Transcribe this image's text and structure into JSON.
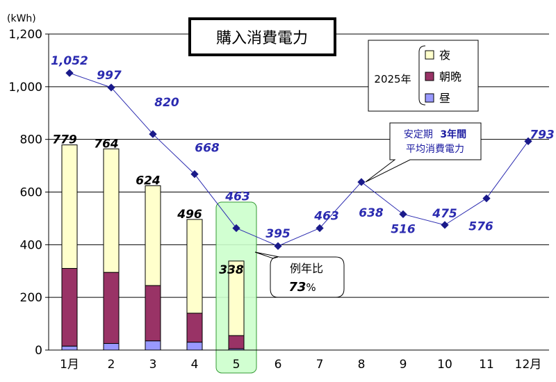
{
  "chart_data": {
    "type": "bar",
    "title": "購入消費電力",
    "unit": "(kWh)",
    "ylim": [
      0,
      1200
    ],
    "yticks": [
      "0",
      "200",
      "400",
      "600",
      "800",
      "1,000",
      "1,200"
    ],
    "categories": [
      "1月",
      "2",
      "3",
      "4",
      "5",
      "6",
      "7",
      "8",
      "9",
      "10",
      "11",
      "12月"
    ],
    "legend_title": "2025年",
    "bar_series": [
      {
        "name": "昼",
        "color": "#9999ff",
        "values": [
          15,
          25,
          35,
          30,
          5
        ]
      },
      {
        "name": "朝晩",
        "color": "#993366",
        "values": [
          295,
          270,
          210,
          110,
          50
        ]
      },
      {
        "name": "夜",
        "color": "#ffffcc",
        "values": [
          469,
          469,
          379,
          356,
          283
        ]
      }
    ],
    "bar_totals": [
      779,
      764,
      624,
      496,
      338
    ],
    "bar_total_labels": [
      "779",
      "764",
      "624",
      "496",
      "338"
    ],
    "line_series": {
      "values": [
        1052,
        997,
        820,
        668,
        463,
        395,
        463,
        638,
        516,
        475,
        576,
        793
      ],
      "labels": [
        "1,052",
        "997",
        "820",
        "668",
        "463",
        "395",
        "463",
        "638",
        "516",
        "475",
        "576",
        "793"
      ],
      "color": "#2b2bb0"
    },
    "callout_average": [
      "安定期",
      "3年間",
      "平均消費電力"
    ],
    "callout_ratio": [
      "例年比",
      "73",
      "%"
    ],
    "highlight_category": "5",
    "grid": true
  }
}
